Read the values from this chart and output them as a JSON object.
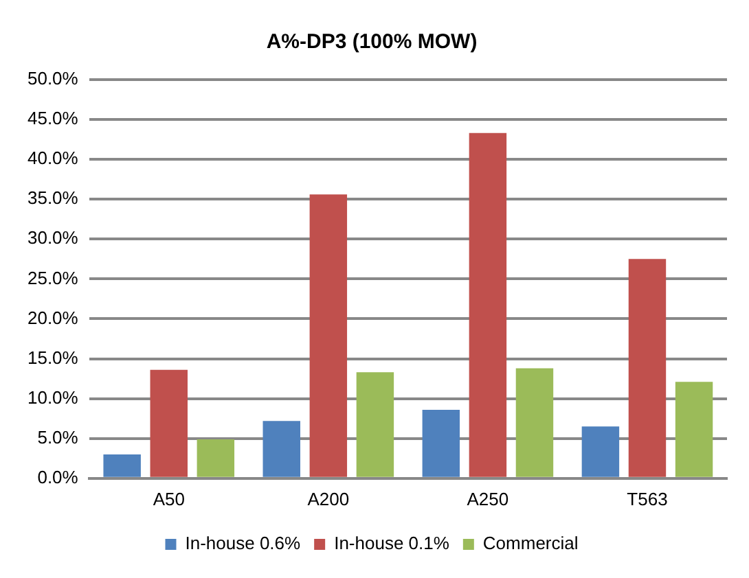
{
  "chart_data": {
    "type": "bar",
    "title": "A%-DP3 (100% MOW)",
    "categories": [
      "A50",
      "A200",
      "A250",
      "T563"
    ],
    "series": [
      {
        "name": "In-house 0.6%",
        "color": "#4f81bd",
        "values": [
          3.0,
          7.2,
          8.6,
          6.5
        ]
      },
      {
        "name": "In-house 0.1%",
        "color": "#c0504d",
        "values": [
          13.6,
          35.6,
          43.3,
          27.5
        ]
      },
      {
        "name": "Commercial",
        "color": "#9bbb59",
        "values": [
          4.9,
          13.3,
          13.8,
          12.1
        ]
      }
    ],
    "ylim": [
      0,
      50
    ],
    "yticks": [
      {
        "value": 0,
        "label": "0.0%"
      },
      {
        "value": 5,
        "label": "5.0%"
      },
      {
        "value": 10,
        "label": "10.0%"
      },
      {
        "value": 15,
        "label": "15.0%"
      },
      {
        "value": 20,
        "label": "20.0%"
      },
      {
        "value": 25,
        "label": "25.0%"
      },
      {
        "value": 30,
        "label": "30.0%"
      },
      {
        "value": 35,
        "label": "35.0%"
      },
      {
        "value": 40,
        "label": "40.0%"
      },
      {
        "value": 45,
        "label": "45.0%"
      },
      {
        "value": 50,
        "label": "50.0%"
      }
    ],
    "grid": "y",
    "legend": "bottom"
  }
}
